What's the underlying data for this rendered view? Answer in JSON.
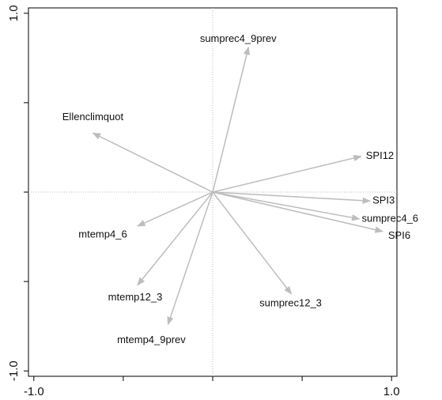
{
  "chart_data": {
    "type": "biplot",
    "color": "#bdbdbd",
    "xlim": [
      -1.03,
      1.03
    ],
    "ylim": [
      -1.03,
      1.03
    ],
    "xticks": [
      {
        "value": -1,
        "label": "-1.0"
      },
      {
        "value": 1,
        "label": "1.0"
      }
    ],
    "yticks": [
      {
        "value": -1,
        "label": "-1.0"
      },
      {
        "value": 1,
        "label": "1.0"
      }
    ],
    "xminor_ticks": [
      -0.5,
      0,
      0.5
    ],
    "yminor_ticks": [
      -0.5,
      0,
      0.5
    ],
    "vectors": [
      {
        "name": "sumprec4_9prev",
        "x": 0.2,
        "y": 0.81
      },
      {
        "name": "Ellenclimquot",
        "x": -0.67,
        "y": 0.33
      },
      {
        "name": "SPI12",
        "x": 0.83,
        "y": 0.2
      },
      {
        "name": "SPI3",
        "x": 0.88,
        "y": -0.05
      },
      {
        "name": "sumprec4_6",
        "x": 0.82,
        "y": -0.15
      },
      {
        "name": "SPI6",
        "x": 0.95,
        "y": -0.22
      },
      {
        "name": "mtemp4_6",
        "x": -0.42,
        "y": -0.19
      },
      {
        "name": "mtemp12_3",
        "x": -0.42,
        "y": -0.52
      },
      {
        "name": "mtemp4_9prev",
        "x": -0.25,
        "y": -0.74
      },
      {
        "name": "sumprec12_3",
        "x": 0.44,
        "y": -0.57
      }
    ]
  }
}
